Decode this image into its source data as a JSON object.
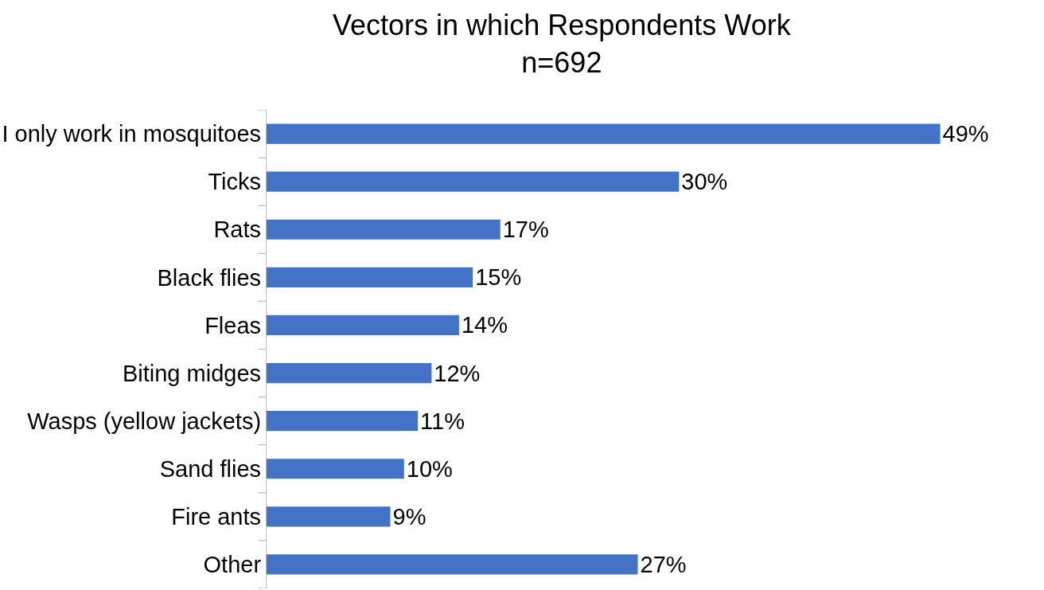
{
  "chart_data": {
    "type": "bar",
    "orientation": "horizontal",
    "title": "Vectors in which Respondents Work",
    "subtitle": "n=692",
    "categories": [
      "I only work in mosquitoes",
      "Ticks",
      "Rats",
      "Black flies",
      "Fleas",
      "Biting midges",
      "Wasps (yellow jackets)",
      "Sand flies",
      "Fire ants",
      "Other"
    ],
    "values": [
      49,
      30,
      17,
      15,
      14,
      12,
      11,
      10,
      9,
      27
    ],
    "value_labels": [
      "49%",
      "30%",
      "17%",
      "15%",
      "14%",
      "12%",
      "11%",
      "10%",
      "9%",
      "27%"
    ],
    "color": "#4472c4",
    "grid": false,
    "legend": false
  }
}
